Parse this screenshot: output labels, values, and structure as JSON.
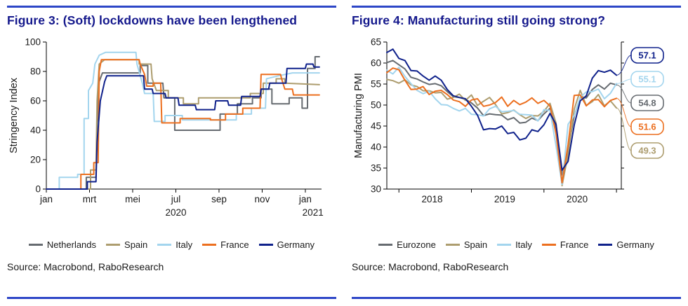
{
  "accent": {
    "rule_blue": "#2d46c7",
    "title_navy": "#14188c"
  },
  "chart_data": [
    {
      "type": "line",
      "title": "Figure 3: (Soft) lockdowns have been lengthened",
      "ylabel": "Stringency Index",
      "source": "Source: Macrobond, RaboResearch",
      "ylim": [
        0,
        100
      ],
      "yticks": [
        0,
        20,
        40,
        60,
        80,
        100
      ],
      "xlim": [
        0,
        12.75
      ],
      "grid": "off",
      "legend_position": "bottom",
      "xticks": [
        {
          "x": 0,
          "label": "jan"
        },
        {
          "x": 2,
          "label": "mrt"
        },
        {
          "x": 4,
          "label": "mei"
        },
        {
          "x": 6,
          "label": "jul"
        },
        {
          "x": 8,
          "label": "sep"
        },
        {
          "x": 10,
          "label": "nov"
        },
        {
          "x": 12,
          "label": "jan"
        }
      ],
      "year_labels": [
        {
          "x": 6,
          "label": "2020"
        },
        {
          "x": 12.35,
          "label": "2021"
        }
      ],
      "series": [
        {
          "name": "Netherlands",
          "color": "#666b70",
          "points": [
            [
              0,
              0
            ],
            [
              1.85,
              0
            ],
            [
              1.85,
              8
            ],
            [
              2.3,
              8
            ],
            [
              2.35,
              45
            ],
            [
              2.45,
              73
            ],
            [
              2.6,
              79
            ],
            [
              4.35,
              79
            ],
            [
              4.35,
              84
            ],
            [
              4.7,
              84
            ],
            [
              4.7,
              72
            ],
            [
              5.4,
              72
            ],
            [
              5.45,
              62
            ],
            [
              5.95,
              62
            ],
            [
              5.95,
              40
            ],
            [
              8.05,
              40
            ],
            [
              8.05,
              51
            ],
            [
              8.85,
              51
            ],
            [
              8.85,
              58
            ],
            [
              9.55,
              58
            ],
            [
              9.55,
              62
            ],
            [
              9.95,
              62
            ],
            [
              9.95,
              68
            ],
            [
              10.45,
              68
            ],
            [
              10.45,
              58
            ],
            [
              11.25,
              58
            ],
            [
              11.25,
              62
            ],
            [
              11.85,
              62
            ],
            [
              11.85,
              55
            ],
            [
              12.1,
              55
            ],
            [
              12.1,
              82
            ],
            [
              12.45,
              82
            ],
            [
              12.45,
              90
            ],
            [
              12.65,
              90
            ]
          ]
        },
        {
          "name": "Spain",
          "color": "#ad9d6f",
          "points": [
            [
              0,
              0
            ],
            [
              2.05,
              0
            ],
            [
              2.05,
              13
            ],
            [
              2.3,
              13
            ],
            [
              2.35,
              60
            ],
            [
              2.45,
              85
            ],
            [
              2.7,
              88
            ],
            [
              4.3,
              88
            ],
            [
              4.3,
              85
            ],
            [
              4.85,
              85
            ],
            [
              4.9,
              75
            ],
            [
              5.1,
              67
            ],
            [
              5.65,
              67
            ],
            [
              5.65,
              62
            ],
            [
              6.35,
              62
            ],
            [
              6.35,
              58
            ],
            [
              7.05,
              58
            ],
            [
              7.05,
              62
            ],
            [
              9.45,
              62
            ],
            [
              9.45,
              65
            ],
            [
              10.05,
              65
            ],
            [
              10.05,
              72
            ],
            [
              10.65,
              72
            ],
            [
              10.65,
              75
            ],
            [
              11.05,
              75
            ],
            [
              11.05,
              72
            ],
            [
              12.65,
              71
            ]
          ]
        },
        {
          "name": "Italy",
          "color": "#a3d5ee",
          "points": [
            [
              0,
              0
            ],
            [
              0.6,
              0
            ],
            [
              0.6,
              8
            ],
            [
              1.45,
              8
            ],
            [
              1.45,
              10
            ],
            [
              1.75,
              10
            ],
            [
              1.75,
              48
            ],
            [
              1.95,
              48
            ],
            [
              1.95,
              67
            ],
            [
              2.15,
              72
            ],
            [
              2.25,
              85
            ],
            [
              2.45,
              91
            ],
            [
              2.75,
              93
            ],
            [
              4.15,
              93
            ],
            [
              4.2,
              85
            ],
            [
              4.45,
              72
            ],
            [
              4.55,
              65
            ],
            [
              4.95,
              65
            ],
            [
              5.0,
              46
            ],
            [
              5.5,
              46
            ],
            [
              5.5,
              50
            ],
            [
              6.3,
              50
            ],
            [
              6.3,
              47
            ],
            [
              8.8,
              47
            ],
            [
              8.8,
              51
            ],
            [
              9.5,
              51
            ],
            [
              9.5,
              55
            ],
            [
              10.15,
              55
            ],
            [
              10.2,
              75
            ],
            [
              10.75,
              77
            ],
            [
              11.4,
              79
            ],
            [
              12.65,
              79
            ]
          ]
        },
        {
          "name": "France",
          "color": "#ec6f1f",
          "points": [
            [
              0,
              0
            ],
            [
              1.6,
              0
            ],
            [
              1.6,
              10
            ],
            [
              2.2,
              10
            ],
            [
              2.2,
              18
            ],
            [
              2.4,
              18
            ],
            [
              2.45,
              80
            ],
            [
              2.55,
              88
            ],
            [
              4.3,
              88
            ],
            [
              4.35,
              85
            ],
            [
              4.55,
              78
            ],
            [
              4.65,
              70
            ],
            [
              4.95,
              70
            ],
            [
              4.95,
              72
            ],
            [
              5.3,
              72
            ],
            [
              5.35,
              45
            ],
            [
              6.2,
              45
            ],
            [
              6.2,
              48
            ],
            [
              7.6,
              48
            ],
            [
              7.6,
              47
            ],
            [
              8.3,
              47
            ],
            [
              8.3,
              51
            ],
            [
              9.1,
              51
            ],
            [
              9.1,
              55
            ],
            [
              9.9,
              55
            ],
            [
              9.95,
              78
            ],
            [
              10.85,
              78
            ],
            [
              10.9,
              75
            ],
            [
              11.05,
              68
            ],
            [
              11.4,
              68
            ],
            [
              11.45,
              64
            ],
            [
              12.65,
              64
            ]
          ]
        },
        {
          "name": "Germany",
          "color": "#0f218b",
          "points": [
            [
              0,
              0
            ],
            [
              1.9,
              0
            ],
            [
              1.9,
              5
            ],
            [
              2.3,
              5
            ],
            [
              2.35,
              32
            ],
            [
              2.5,
              60
            ],
            [
              2.7,
              73
            ],
            [
              2.8,
              77
            ],
            [
              4.5,
              77
            ],
            [
              4.55,
              68
            ],
            [
              4.9,
              68
            ],
            [
              4.95,
              65
            ],
            [
              5.5,
              65
            ],
            [
              5.55,
              62
            ],
            [
              6.1,
              62
            ],
            [
              6.15,
              57
            ],
            [
              6.9,
              57
            ],
            [
              6.95,
              54
            ],
            [
              7.8,
              54
            ],
            [
              7.85,
              60
            ],
            [
              8.4,
              60
            ],
            [
              8.45,
              57
            ],
            [
              9.0,
              57
            ],
            [
              9.05,
              63
            ],
            [
              9.9,
              63
            ],
            [
              9.95,
              68
            ],
            [
              10.3,
              68
            ],
            [
              10.35,
              72
            ],
            [
              11.1,
              72
            ],
            [
              11.15,
              82
            ],
            [
              12.0,
              82
            ],
            [
              12.05,
              85
            ],
            [
              12.35,
              85
            ],
            [
              12.4,
              83
            ],
            [
              12.65,
              83
            ]
          ]
        }
      ]
    },
    {
      "type": "line",
      "title": "Figure 4: Manufacturing still going strong?",
      "ylabel": "Manufacturing PMI",
      "source": "Source: Macrobond, RaboResearch",
      "ylim": [
        30,
        65
      ],
      "yticks": [
        30,
        35,
        40,
        45,
        50,
        55,
        60,
        65
      ],
      "xlim": [
        0,
        38.8
      ],
      "grid": "off",
      "legend_position": "bottom",
      "x_start": "Nov 2017",
      "x_step": "month",
      "xticks": [
        {
          "x": 7.5,
          "label": "2018"
        },
        {
          "x": 19.5,
          "label": "2019"
        },
        {
          "x": 31.5,
          "label": "2020"
        }
      ],
      "x_minor_ticks": [
        2,
        14,
        26,
        38
      ],
      "year_labels": [],
      "series": [
        {
          "name": "Eurozone",
          "color": "#666b70",
          "values": [
            60.1,
            60.6,
            59.6,
            58.6,
            56.6,
            56.2,
            55.5,
            54.9,
            55.1,
            54.6,
            53.2,
            52.0,
            51.8,
            51.4,
            50.5,
            49.3,
            47.5,
            47.9,
            47.7,
            47.6,
            46.5,
            47.0,
            45.7,
            45.9,
            46.9,
            46.3,
            47.9,
            49.2,
            44.5,
            33.4,
            39.4,
            47.4,
            51.8,
            51.7,
            53.7,
            54.8,
            53.8,
            55.2,
            54.8
          ]
        },
        {
          "name": "Spain",
          "color": "#ad9d6f",
          "values": [
            56.1,
            55.8,
            55.2,
            56.0,
            54.8,
            54.4,
            53.4,
            53.4,
            52.9,
            53.0,
            51.4,
            51.8,
            52.6,
            51.1,
            52.4,
            49.9,
            50.9,
            51.8,
            50.1,
            47.9,
            48.2,
            48.8,
            47.7,
            46.8,
            47.5,
            47.4,
            48.5,
            50.4,
            45.7,
            30.8,
            38.3,
            49.0,
            53.5,
            49.9,
            50.8,
            52.5,
            49.8,
            51.0,
            49.3
          ]
        },
        {
          "name": "Italy",
          "color": "#a3d5ee",
          "values": [
            58.3,
            57.4,
            59.0,
            56.8,
            55.1,
            53.5,
            52.7,
            53.3,
            51.5,
            50.1,
            50.0,
            49.2,
            48.6,
            49.2,
            47.8,
            47.7,
            47.4,
            49.1,
            49.7,
            48.4,
            48.5,
            48.7,
            47.8,
            47.7,
            47.6,
            46.2,
            48.9,
            48.7,
            40.3,
            31.1,
            45.4,
            47.5,
            51.9,
            53.1,
            53.2,
            53.8,
            51.5,
            52.8,
            55.1
          ]
        },
        {
          "name": "France",
          "color": "#ec6f1f",
          "values": [
            57.7,
            58.8,
            58.4,
            55.9,
            53.7,
            53.8,
            54.4,
            52.5,
            53.3,
            53.5,
            52.5,
            51.2,
            50.8,
            49.7,
            51.2,
            51.5,
            49.7,
            50.0,
            50.6,
            51.9,
            49.7,
            51.1,
            50.1,
            50.7,
            51.7,
            50.4,
            51.1,
            49.8,
            43.2,
            31.5,
            40.6,
            52.3,
            52.4,
            49.8,
            51.2,
            51.3,
            49.6,
            51.1,
            51.6
          ]
        },
        {
          "name": "Germany",
          "color": "#0f218b",
          "values": [
            62.5,
            63.3,
            61.1,
            60.6,
            58.2,
            58.1,
            56.9,
            55.9,
            56.9,
            55.9,
            53.7,
            52.2,
            51.8,
            51.5,
            49.7,
            47.6,
            44.1,
            44.4,
            44.3,
            45.0,
            43.2,
            43.5,
            41.7,
            42.1,
            44.1,
            43.7,
            45.3,
            48.0,
            45.4,
            34.5,
            36.6,
            45.2,
            51.0,
            52.2,
            56.4,
            58.2,
            57.8,
            58.3,
            57.1
          ]
        }
      ],
      "end_labels": [
        {
          "series": "Germany",
          "text": "57.1",
          "color": "#0f218b"
        },
        {
          "series": "Italy",
          "text": "55.1",
          "color": "#a3d5ee"
        },
        {
          "series": "Eurozone",
          "text": "54.8",
          "color": "#666b70"
        },
        {
          "series": "France",
          "text": "51.6",
          "color": "#ec6f1f"
        },
        {
          "series": "Spain",
          "text": "49.3",
          "color": "#ad9d6f"
        }
      ]
    }
  ]
}
